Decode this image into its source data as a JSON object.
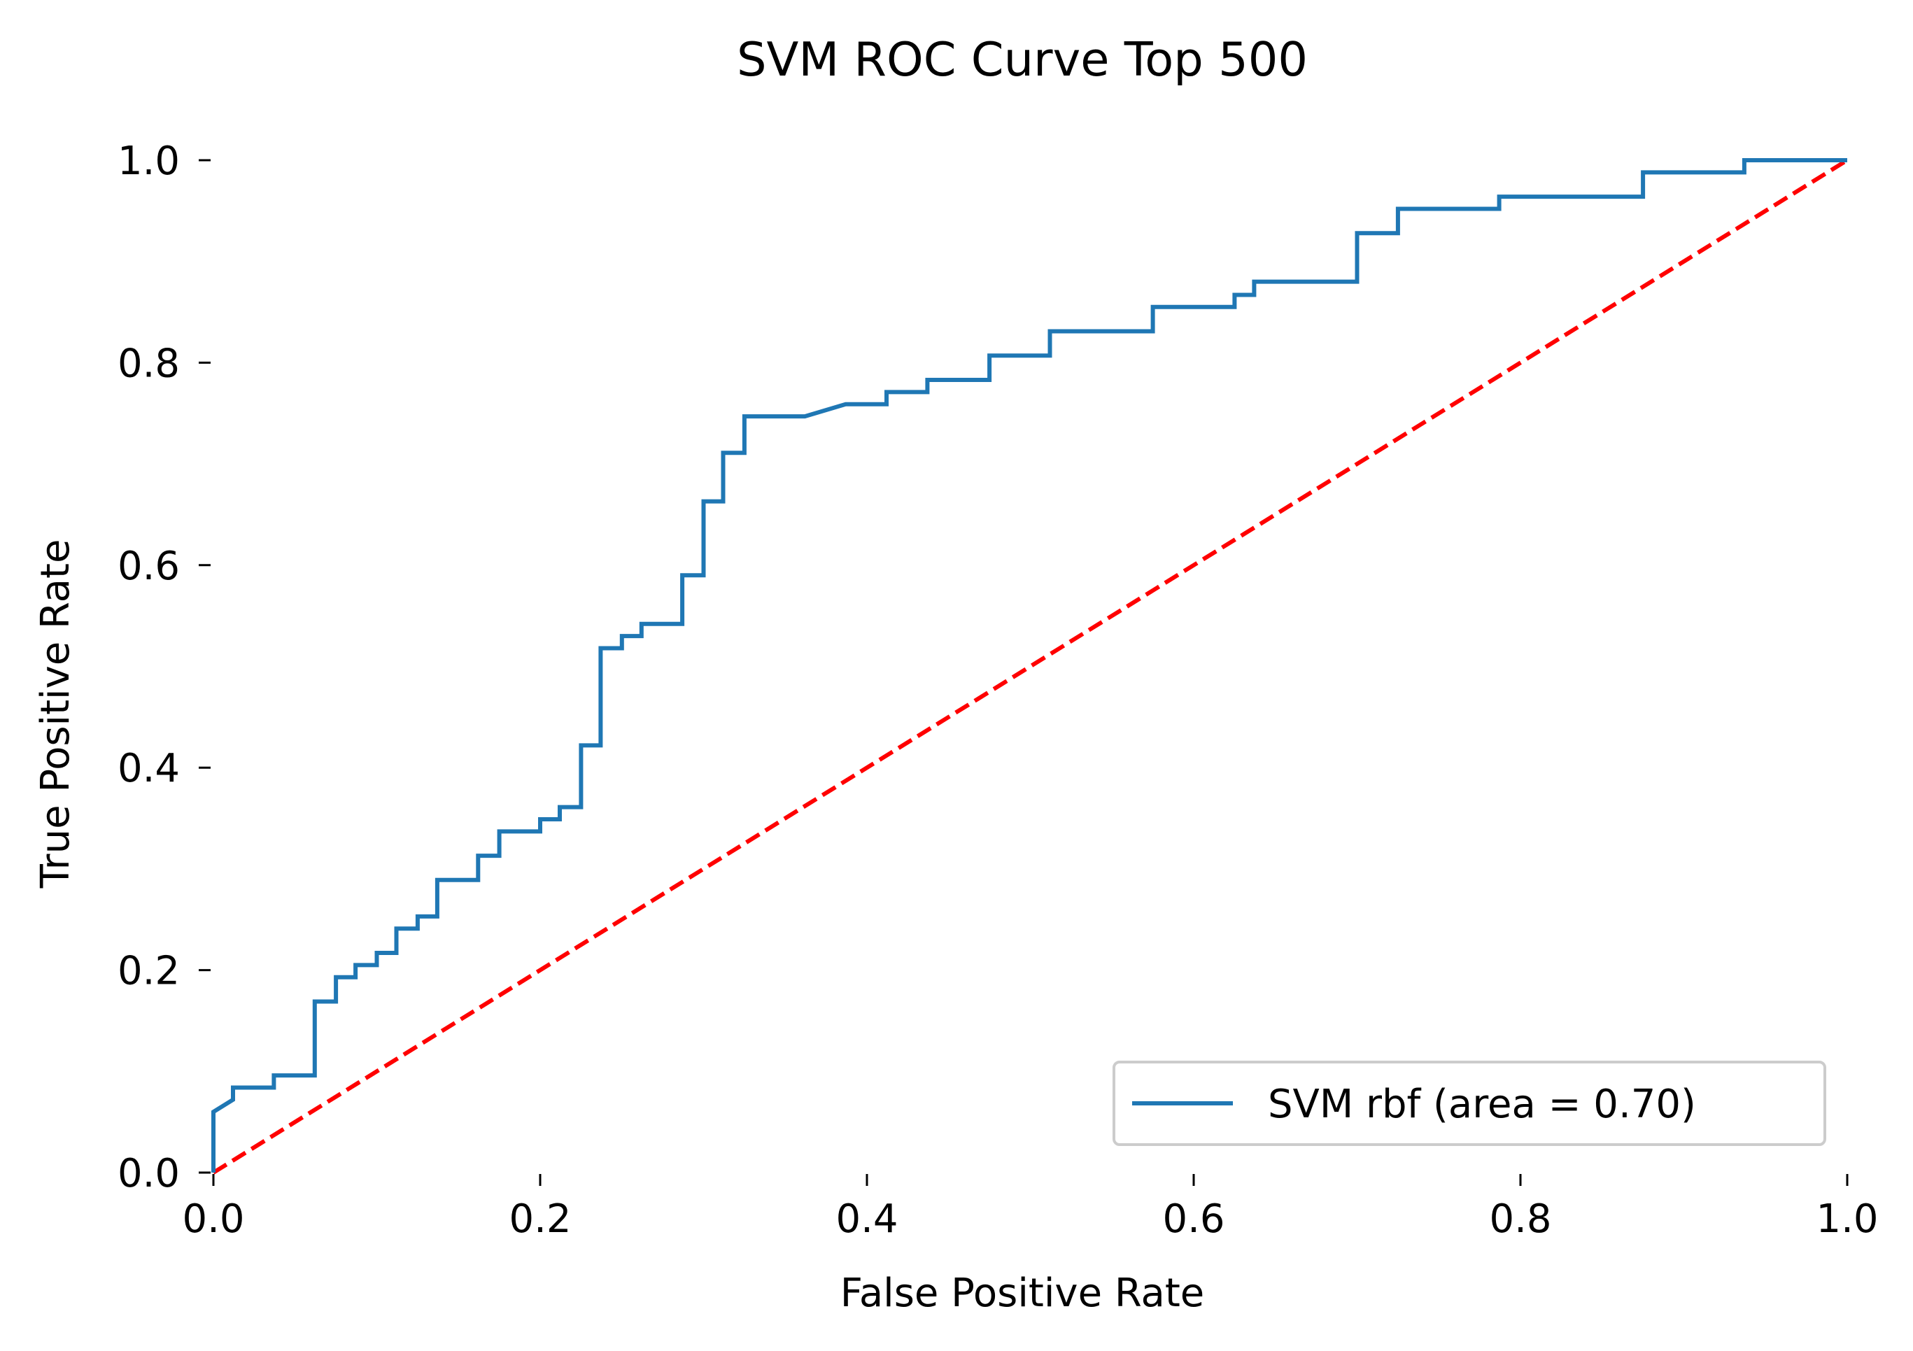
{
  "chart_data": {
    "type": "line",
    "title": "SVM ROC Curve Top 500",
    "xlabel": "False Positive Rate",
    "ylabel": "True Positive Rate",
    "xlim": [
      0.0,
      1.0
    ],
    "ylim": [
      0.0,
      1.0
    ],
    "xticks": [
      "0.0",
      "0.2",
      "0.4",
      "0.6",
      "0.8",
      "1.0"
    ],
    "yticks": [
      "0.0",
      "0.2",
      "0.4",
      "0.6",
      "0.8",
      "1.0"
    ],
    "grid": false,
    "legend_position": "lower-right",
    "series": [
      {
        "name": "SVM rbf (area = 0.70)",
        "color": "#1f77b4",
        "style": "solid",
        "x": [
          0.0,
          0.0,
          0.012,
          0.012,
          0.037,
          0.037,
          0.062,
          0.062,
          0.075,
          0.075,
          0.087,
          0.087,
          0.1,
          0.1,
          0.112,
          0.112,
          0.125,
          0.125,
          0.137,
          0.137,
          0.162,
          0.162,
          0.175,
          0.175,
          0.2,
          0.2,
          0.212,
          0.212,
          0.225,
          0.225,
          0.237,
          0.237,
          0.25,
          0.25,
          0.262,
          0.262,
          0.287,
          0.287,
          0.3,
          0.3,
          0.312,
          0.312,
          0.325,
          0.325,
          0.362,
          0.387,
          0.412,
          0.412,
          0.437,
          0.437,
          0.475,
          0.475,
          0.512,
          0.512,
          0.575,
          0.575,
          0.625,
          0.625,
          0.637,
          0.637,
          0.7,
          0.7,
          0.725,
          0.725,
          0.787,
          0.787,
          0.875,
          0.875,
          0.937,
          0.937,
          1.0
        ],
        "y": [
          0.0,
          0.06,
          0.072,
          0.084,
          0.084,
          0.096,
          0.096,
          0.169,
          0.169,
          0.193,
          0.193,
          0.205,
          0.205,
          0.217,
          0.217,
          0.241,
          0.241,
          0.253,
          0.253,
          0.289,
          0.289,
          0.313,
          0.313,
          0.337,
          0.337,
          0.349,
          0.349,
          0.361,
          0.361,
          0.422,
          0.422,
          0.518,
          0.518,
          0.53,
          0.53,
          0.542,
          0.542,
          0.59,
          0.59,
          0.663,
          0.663,
          0.711,
          0.711,
          0.747,
          0.747,
          0.759,
          0.759,
          0.771,
          0.771,
          0.783,
          0.783,
          0.807,
          0.807,
          0.831,
          0.831,
          0.855,
          0.855,
          0.867,
          0.867,
          0.88,
          0.88,
          0.928,
          0.928,
          0.952,
          0.952,
          0.964,
          0.964,
          0.988,
          0.988,
          1.0,
          1.0
        ]
      },
      {
        "color": "#ff0000",
        "style": "dashed",
        "x": [
          0.0,
          1.0
        ],
        "y": [
          0.0,
          1.0
        ]
      }
    ]
  }
}
